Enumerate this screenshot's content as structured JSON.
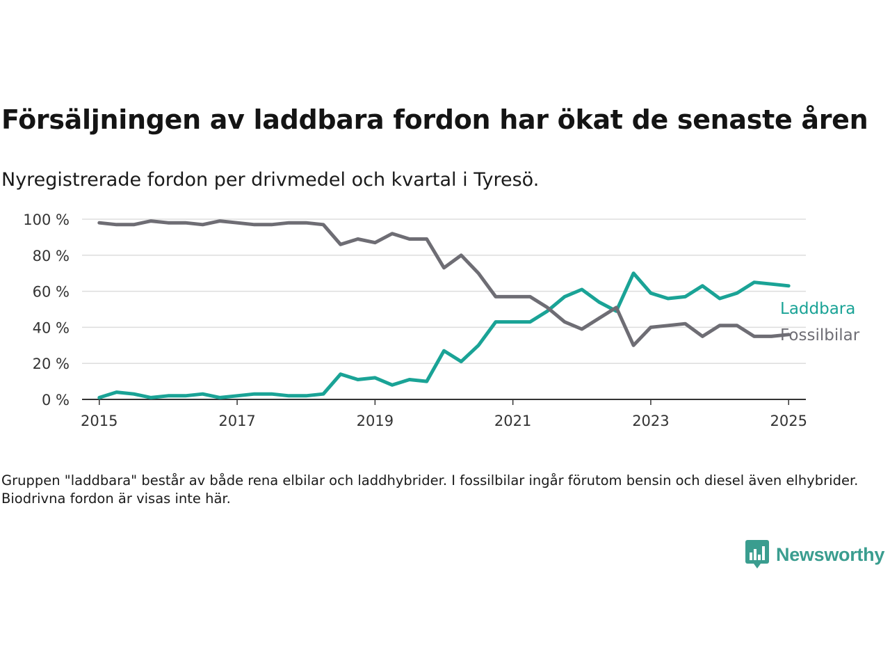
{
  "title": "Försäljningen av laddbara fordon har ökat de senaste åren",
  "subtitle": "Nyregistrerade fordon per drivmedel och kvartal i Tyresö.",
  "note": "Gruppen \"laddbara\" består av både rena elbilar och laddhybrider. I fossilbilar ingår förutom bensin och diesel även elhybrider. Biodrivna fordon är visas inte här.",
  "logo": {
    "text": "Newsworthy",
    "icon": "newsworthy-bar-chart-icon"
  },
  "colors": {
    "laddbara": "#1aa396",
    "fossil": "#6e6d74",
    "grid": "#dddddd",
    "axis": "#333333"
  },
  "chart_data": {
    "type": "line",
    "x_unit": "year",
    "xlim": [
      2014.75,
      2025.25
    ],
    "ylim": [
      0,
      100
    ],
    "x_ticks": [
      2015,
      2017,
      2019,
      2021,
      2023,
      2025
    ],
    "y_ticks": [
      0,
      20,
      40,
      60,
      80,
      100
    ],
    "y_tick_labels": [
      "0 %",
      "20 %",
      "40 %",
      "60 %",
      "80 %",
      "100 %"
    ],
    "grid": true,
    "x": [
      2015,
      2015.25,
      2015.5,
      2015.75,
      2016,
      2016.25,
      2016.5,
      2016.75,
      2017,
      2017.25,
      2017.5,
      2017.75,
      2018,
      2018.25,
      2018.5,
      2018.75,
      2019,
      2019.25,
      2019.5,
      2019.75,
      2020,
      2020.25,
      2020.5,
      2020.75,
      2021,
      2021.25,
      2021.5,
      2021.75,
      2022,
      2022.25,
      2022.5,
      2022.75,
      2023,
      2023.25,
      2023.5,
      2023.75,
      2024,
      2024.25,
      2024.5,
      2024.75,
      2025
    ],
    "series": [
      {
        "name": "Laddbara",
        "color": "#1aa396",
        "values": [
          1,
          4,
          3,
          1,
          2,
          2,
          3,
          1,
          2,
          3,
          3,
          2,
          2,
          3,
          14,
          11,
          12,
          8,
          11,
          10,
          27,
          21,
          30,
          43,
          43,
          43,
          49,
          57,
          61,
          54,
          49,
          70,
          59,
          56,
          57,
          63,
          56,
          59,
          65,
          64,
          63
        ]
      },
      {
        "name": "Fossilbilar",
        "color": "#6e6d74",
        "values": [
          98,
          97,
          97,
          99,
          98,
          98,
          97,
          99,
          98,
          97,
          97,
          98,
          98,
          97,
          86,
          89,
          87,
          92,
          89,
          89,
          73,
          80,
          70,
          57,
          57,
          57,
          51,
          43,
          39,
          45,
          51,
          30,
          40,
          41,
          42,
          35,
          41,
          41,
          35,
          35,
          36
        ]
      }
    ]
  }
}
